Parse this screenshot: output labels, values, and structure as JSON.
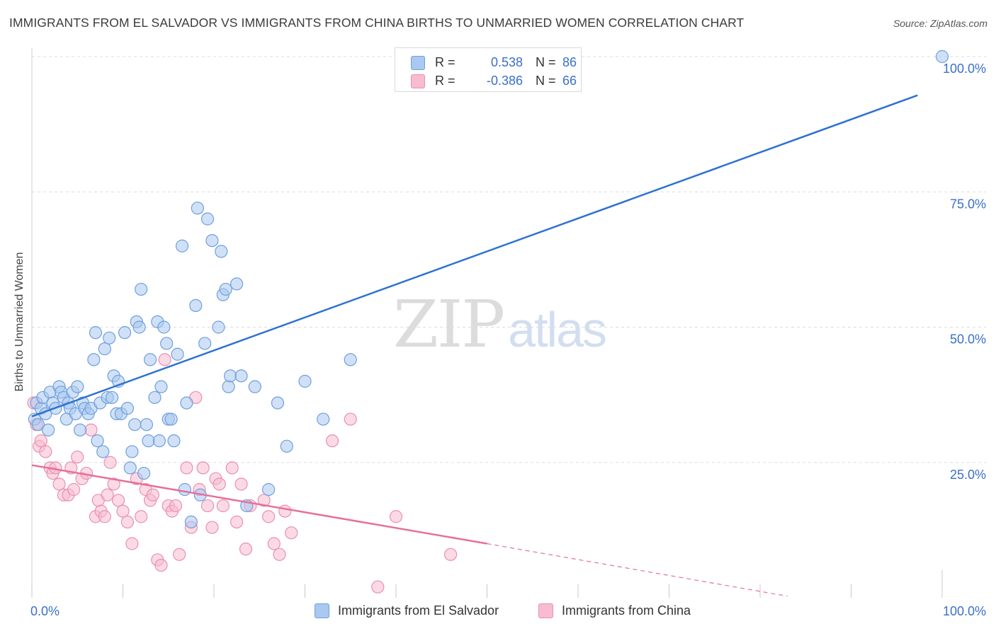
{
  "title": "IMMIGRANTS FROM EL SALVADOR VS IMMIGRANTS FROM CHINA BIRTHS TO UNMARRIED WOMEN CORRELATION CHART",
  "source": "Source: ZipAtlas.com",
  "watermark": {
    "zip": "ZIP",
    "atlas": "atlas"
  },
  "stats": [
    {
      "r_label": "R =",
      "r_value": "0.538",
      "n_label": "N =",
      "n_value": "86"
    },
    {
      "r_label": "R =",
      "r_value": "-0.386",
      "n_label": "N =",
      "n_value": "66"
    }
  ],
  "legend": [
    {
      "label": "Immigrants from El Salvador"
    },
    {
      "label": "Immigrants from China"
    }
  ],
  "colors": {
    "blue_fill": "#aac8f0",
    "blue_stroke": "#6f9fdc",
    "blue_line": "#2f72d0",
    "pink_fill": "#f7bcd0",
    "pink_stroke": "#ea8fb0",
    "pink_line": "#e5709a",
    "grid": "#dddddd",
    "tick_label": "#3a6fc9"
  },
  "chart_data": {
    "type": "scatter",
    "title": "IMMIGRANTS FROM EL SALVADOR VS IMMIGRANTS FROM CHINA BIRTHS TO UNMARRIED WOMEN CORRELATION CHART",
    "xlabel": "",
    "ylabel": "Births to Unmarried Women",
    "xlim": [
      0,
      100
    ],
    "ylim": [
      0,
      100
    ],
    "x_tick_labels": [
      "0.0%",
      "100.0%"
    ],
    "y_ticks": [
      25,
      50,
      75,
      100
    ],
    "y_tick_labels": [
      "25.0%",
      "50.0%",
      "75.0%",
      "100.0%"
    ],
    "grid": true,
    "legend_position": "bottom",
    "series": [
      {
        "name": "Immigrants from El Salvador",
        "color": "#aac8f0",
        "trend": {
          "x0": 0,
          "y0": 33.5,
          "x1": 100,
          "y1": 94.5
        },
        "points": [
          [
            0.3,
            33
          ],
          [
            0.5,
            36
          ],
          [
            0.7,
            32
          ],
          [
            1.0,
            35
          ],
          [
            1.2,
            37
          ],
          [
            1.5,
            34
          ],
          [
            1.8,
            31
          ],
          [
            2.0,
            38
          ],
          [
            2.3,
            36
          ],
          [
            2.6,
            35
          ],
          [
            3.0,
            39
          ],
          [
            3.2,
            38
          ],
          [
            3.5,
            37
          ],
          [
            3.8,
            33
          ],
          [
            4.0,
            36
          ],
          [
            4.2,
            35
          ],
          [
            4.5,
            38
          ],
          [
            4.8,
            34
          ],
          [
            5.0,
            39
          ],
          [
            5.3,
            31
          ],
          [
            5.6,
            36
          ],
          [
            5.8,
            35
          ],
          [
            6.2,
            34
          ],
          [
            6.5,
            35
          ],
          [
            6.8,
            44
          ],
          [
            7.0,
            49
          ],
          [
            7.2,
            29
          ],
          [
            7.5,
            36
          ],
          [
            7.8,
            27
          ],
          [
            8.0,
            46
          ],
          [
            8.3,
            37
          ],
          [
            8.5,
            48
          ],
          [
            8.8,
            37
          ],
          [
            9.0,
            41
          ],
          [
            9.3,
            34
          ],
          [
            9.5,
            40
          ],
          [
            9.8,
            34
          ],
          [
            10.2,
            49
          ],
          [
            10.5,
            35
          ],
          [
            10.8,
            24
          ],
          [
            11.0,
            27
          ],
          [
            11.3,
            32
          ],
          [
            11.5,
            51
          ],
          [
            11.8,
            50
          ],
          [
            12.0,
            57
          ],
          [
            12.3,
            23
          ],
          [
            12.6,
            32
          ],
          [
            12.8,
            29
          ],
          [
            13.0,
            44
          ],
          [
            13.5,
            37
          ],
          [
            13.8,
            51
          ],
          [
            14.0,
            29
          ],
          [
            14.2,
            39
          ],
          [
            14.5,
            50
          ],
          [
            14.8,
            47
          ],
          [
            15.0,
            33
          ],
          [
            15.3,
            33
          ],
          [
            15.6,
            29
          ],
          [
            16.0,
            45
          ],
          [
            16.5,
            65
          ],
          [
            16.8,
            20
          ],
          [
            17.0,
            36
          ],
          [
            17.5,
            14
          ],
          [
            18.0,
            54
          ],
          [
            18.2,
            72
          ],
          [
            18.5,
            19
          ],
          [
            19.0,
            47
          ],
          [
            19.3,
            70
          ],
          [
            19.8,
            66
          ],
          [
            20.5,
            50
          ],
          [
            20.8,
            64
          ],
          [
            21.0,
            56
          ],
          [
            21.3,
            57
          ],
          [
            21.6,
            39
          ],
          [
            21.8,
            41
          ],
          [
            22.5,
            58
          ],
          [
            23.0,
            41
          ],
          [
            23.6,
            17
          ],
          [
            24.5,
            39
          ],
          [
            26.0,
            20
          ],
          [
            27.0,
            36
          ],
          [
            28.0,
            28
          ],
          [
            30.0,
            40
          ],
          [
            32.0,
            33
          ],
          [
            35.0,
            44
          ],
          [
            100,
            100
          ]
        ]
      },
      {
        "name": "Immigrants from China",
        "color": "#f7bcd0",
        "trend": {
          "x0": 0,
          "y0": 24.5,
          "x1": 50,
          "y1": 10.0,
          "dash_to_x": 83,
          "dash_to_y": 0.3
        },
        "points": [
          [
            0.2,
            36
          ],
          [
            0.5,
            32
          ],
          [
            0.8,
            28
          ],
          [
            1.0,
            29
          ],
          [
            1.5,
            27
          ],
          [
            2.0,
            24
          ],
          [
            2.3,
            23
          ],
          [
            2.6,
            24
          ],
          [
            3.0,
            21
          ],
          [
            3.5,
            19
          ],
          [
            4.0,
            19
          ],
          [
            4.3,
            24
          ],
          [
            4.6,
            20
          ],
          [
            5.0,
            26
          ],
          [
            5.5,
            22
          ],
          [
            6.0,
            23
          ],
          [
            6.5,
            31
          ],
          [
            7.0,
            15
          ],
          [
            7.3,
            18
          ],
          [
            7.6,
            16
          ],
          [
            8.0,
            15
          ],
          [
            8.3,
            19
          ],
          [
            8.6,
            25
          ],
          [
            9.0,
            21
          ],
          [
            9.5,
            18
          ],
          [
            10.0,
            16
          ],
          [
            10.5,
            14
          ],
          [
            11.0,
            10
          ],
          [
            11.5,
            22
          ],
          [
            12.0,
            15
          ],
          [
            12.5,
            20
          ],
          [
            13.0,
            18
          ],
          [
            13.3,
            19
          ],
          [
            13.8,
            7
          ],
          [
            14.2,
            6
          ],
          [
            14.6,
            44
          ],
          [
            15.0,
            17
          ],
          [
            15.4,
            16
          ],
          [
            15.8,
            17
          ],
          [
            16.2,
            8
          ],
          [
            17.0,
            24
          ],
          [
            17.5,
            13
          ],
          [
            18.0,
            37
          ],
          [
            18.4,
            20
          ],
          [
            18.8,
            24
          ],
          [
            19.3,
            17
          ],
          [
            19.8,
            13
          ],
          [
            20.2,
            22
          ],
          [
            20.6,
            21
          ],
          [
            21.0,
            17
          ],
          [
            22.0,
            24
          ],
          [
            22.5,
            14
          ],
          [
            23.0,
            21
          ],
          [
            23.5,
            9
          ],
          [
            24.0,
            17
          ],
          [
            25.5,
            18
          ],
          [
            26.0,
            15
          ],
          [
            26.6,
            10
          ],
          [
            27.2,
            8
          ],
          [
            27.8,
            16
          ],
          [
            28.5,
            12
          ],
          [
            33.0,
            29
          ],
          [
            35.0,
            33
          ],
          [
            38.0,
            2
          ],
          [
            40.0,
            15
          ],
          [
            46.0,
            8
          ]
        ]
      }
    ]
  }
}
